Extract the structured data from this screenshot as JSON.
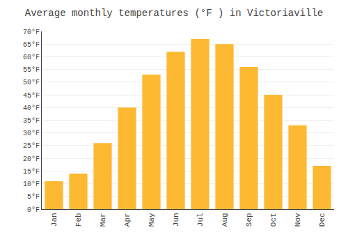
{
  "chart_data": {
    "type": "bar",
    "title": "Average monthly temperatures (°F ) in Victoriaville",
    "categories": [
      "Jan",
      "Feb",
      "Mar",
      "Apr",
      "May",
      "Jun",
      "Jul",
      "Aug",
      "Sep",
      "Oct",
      "Nov",
      "Dec"
    ],
    "values": [
      11,
      14,
      26,
      40,
      53,
      62,
      67,
      65,
      56,
      45,
      33,
      17
    ],
    "color": "#FDB931",
    "ylim": [
      0,
      70
    ],
    "yticks": [
      {
        "value": 0,
        "label": "0°F"
      },
      {
        "value": 5,
        "label": "5°F"
      },
      {
        "value": 10,
        "label": "10°F"
      },
      {
        "value": 15,
        "label": "15°F"
      },
      {
        "value": 20,
        "label": "20°F"
      },
      {
        "value": 25,
        "label": "25°F"
      },
      {
        "value": 30,
        "label": "30°F"
      },
      {
        "value": 35,
        "label": "35°F"
      },
      {
        "value": 40,
        "label": "40°F"
      },
      {
        "value": 45,
        "label": "45°F"
      },
      {
        "value": 50,
        "label": "50°F"
      },
      {
        "value": 55,
        "label": "55°F"
      },
      {
        "value": 60,
        "label": "60°F"
      },
      {
        "value": 65,
        "label": "65°F"
      },
      {
        "value": 70,
        "label": "70°F"
      }
    ],
    "grid": true
  }
}
